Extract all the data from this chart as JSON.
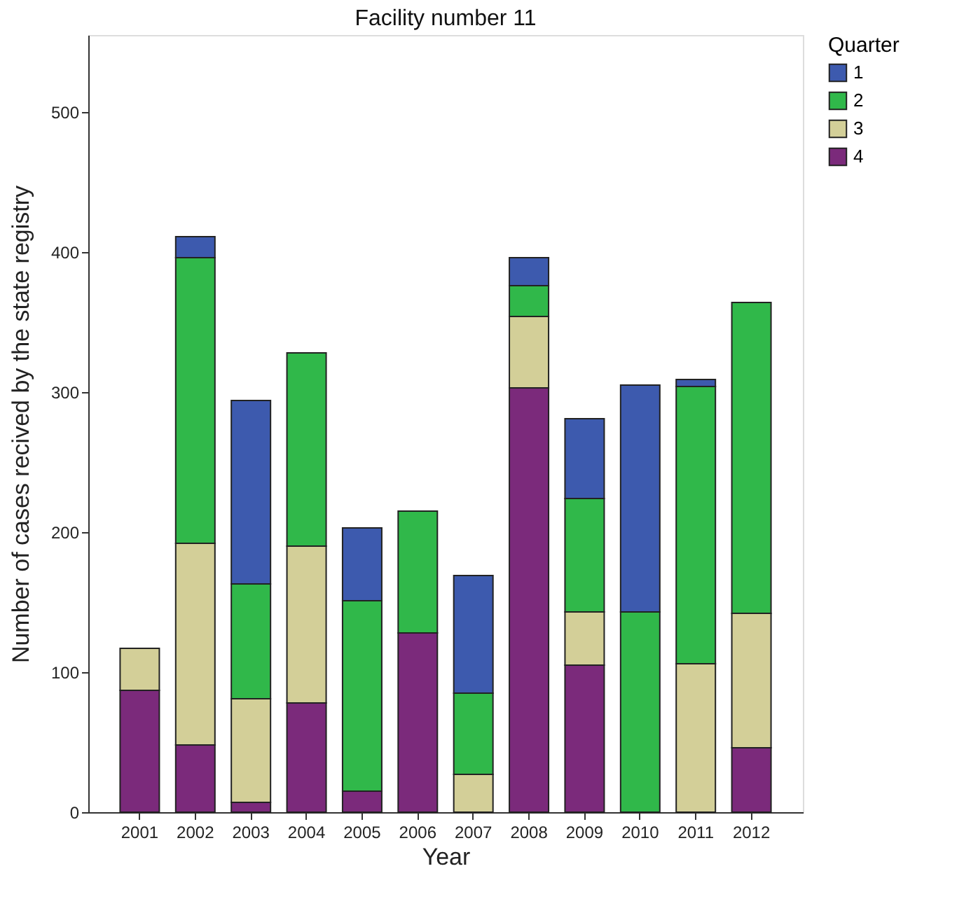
{
  "chart_data": {
    "type": "bar",
    "title": "Facility number 11",
    "xlabel": "Year",
    "ylabel": "Number of cases recived by the state registry",
    "legend_title": "Quarter",
    "categories": [
      "2001",
      "2002",
      "2003",
      "2004",
      "2005",
      "2006",
      "2007",
      "2008",
      "2009",
      "2010",
      "2011",
      "2012"
    ],
    "stacked": true,
    "series": [
      {
        "name": "4",
        "color": "#7b2a7b",
        "values": [
          87,
          48,
          7,
          78,
          15,
          128,
          null,
          303,
          105,
          null,
          null,
          46
        ]
      },
      {
        "name": "3",
        "color": "#d3cf98",
        "values": [
          30,
          144,
          74,
          112,
          null,
          null,
          27,
          51,
          38,
          null,
          106,
          96
        ]
      },
      {
        "name": "2",
        "color": "#30b84a",
        "values": [
          null,
          204,
          82,
          138,
          136,
          87,
          58,
          22,
          81,
          143,
          198,
          222
        ]
      },
      {
        "name": "1",
        "color": "#3d5aae",
        "values": [
          null,
          15,
          131,
          null,
          52,
          null,
          84,
          20,
          57,
          162,
          5,
          null
        ]
      }
    ],
    "ylim": [
      0,
      555
    ],
    "yticks": [
      0,
      100,
      200,
      300,
      400,
      500
    ],
    "grid": false,
    "legend": "top right"
  }
}
